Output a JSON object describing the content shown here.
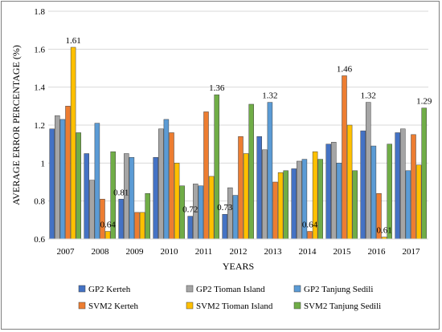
{
  "chart_data": {
    "type": "bar",
    "xlabel": "YEARS",
    "ylabel": "AVERAGE ERROR PERCENTAGE (%)",
    "ylim": [
      0.6,
      1.8
    ],
    "yticks": [
      "0.6",
      "0.8",
      "1",
      "1.2",
      "1.4",
      "1.6",
      "1.8"
    ],
    "grid": "horizontal",
    "legend_position": "bottom",
    "categories": [
      "2007",
      "2008",
      "2009",
      "2010",
      "2011",
      "2012",
      "2013",
      "2014",
      "2015",
      "2016",
      "2017"
    ],
    "series": [
      {
        "name": "GP2 Kerteh",
        "color": "#4472C4",
        "values": [
          1.18,
          1.05,
          0.81,
          1.03,
          0.72,
          0.73,
          1.14,
          0.97,
          1.1,
          1.17,
          1.16
        ]
      },
      {
        "name": "GP2 Tioman Island",
        "color": "#A5A5A5",
        "values": [
          1.25,
          0.91,
          1.05,
          1.18,
          0.89,
          0.87,
          1.07,
          1.01,
          1.11,
          1.32,
          1.18
        ]
      },
      {
        "name": "GP2 Tanjung Sedili",
        "color": "#5B9BD5",
        "values": [
          1.23,
          1.21,
          1.03,
          1.23,
          0.88,
          0.83,
          1.32,
          1.02,
          1.0,
          1.09,
          0.96
        ]
      },
      {
        "name": "SVM2 Kerteh",
        "color": "#ED7D31",
        "values": [
          1.3,
          0.81,
          0.74,
          1.16,
          1.27,
          1.14,
          0.9,
          0.64,
          1.46,
          0.84,
          1.15
        ]
      },
      {
        "name": "SVM2 Tioman Island",
        "color": "#FFC000",
        "values": [
          1.61,
          0.64,
          0.74,
          1.0,
          0.93,
          1.05,
          0.95,
          1.06,
          1.2,
          0.61,
          0.99
        ]
      },
      {
        "name": "SVM2 Tanjung Sedili",
        "color": "#70AD47",
        "values": [
          1.16,
          1.06,
          0.84,
          0.88,
          1.36,
          1.31,
          0.96,
          1.02,
          0.96,
          1.1,
          1.29
        ]
      }
    ],
    "data_labels": [
      {
        "text": "1.61",
        "category": "2007",
        "series": "SVM2 Tioman Island",
        "value": 1.61
      },
      {
        "text": "0.64",
        "category": "2008",
        "series": "SVM2 Tioman Island",
        "value": 0.64
      },
      {
        "text": "0.81",
        "category": "2009",
        "series": "GP2 Kerteh",
        "value": 0.81
      },
      {
        "text": "1.36",
        "category": "2011",
        "series": "SVM2 Tanjung Sedili",
        "value": 1.36
      },
      {
        "text": "0.72",
        "category": "2011",
        "series": "GP2 Kerteh",
        "value": 0.72
      },
      {
        "text": "0.73",
        "category": "2012",
        "series": "GP2 Kerteh",
        "value": 0.73
      },
      {
        "text": "1.32",
        "category": "2013",
        "series": "GP2 Tanjung Sedili",
        "value": 1.32
      },
      {
        "text": "0.64",
        "category": "2014",
        "series": "SVM2 Kerteh",
        "value": 0.64
      },
      {
        "text": "1.46",
        "category": "2015",
        "series": "SVM2 Kerteh",
        "value": 1.46
      },
      {
        "text": "1.32",
        "category": "2016",
        "series": "GP2 Tioman Island",
        "value": 1.32
      },
      {
        "text": "0.61",
        "category": "2016",
        "series": "SVM2 Tioman Island",
        "value": 0.61
      },
      {
        "text": "1.29",
        "category": "2017",
        "series": "SVM2 Tanjung Sedili",
        "value": 1.29
      }
    ]
  }
}
